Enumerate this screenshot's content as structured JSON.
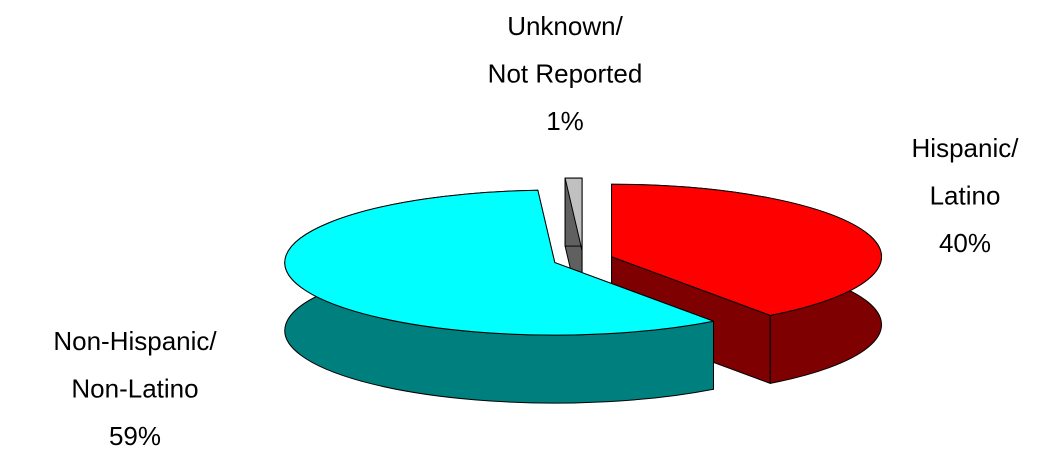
{
  "chart_data": {
    "type": "pie",
    "categories": [
      "Hispanic/ Latino",
      "Non-Hispanic/ Non-Latino",
      "Unknown/ Not Reported"
    ],
    "values": [
      40,
      59,
      1
    ],
    "value_labels": [
      "40%",
      "59%",
      "1%"
    ],
    "colors": [
      "#ff0000",
      "#00ffff",
      "#c0c0c0"
    ],
    "three_d": true,
    "exploded": true
  }
}
